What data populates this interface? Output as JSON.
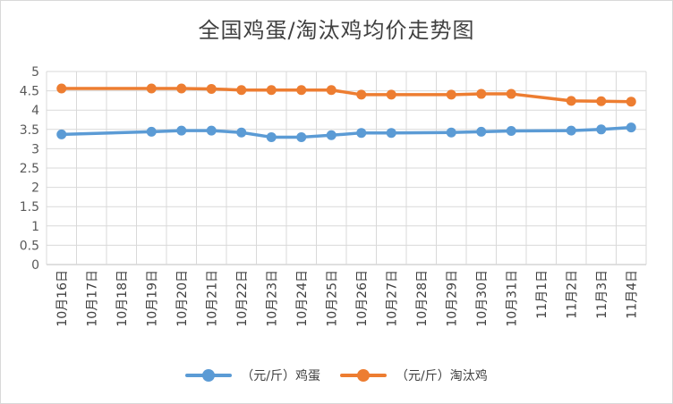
{
  "chart_data": {
    "type": "line",
    "title": "全国鸡蛋/淘汰鸡均价走势图",
    "categories": [
      "10月16日",
      "10月17日",
      "10月18日",
      "10月19日",
      "10月20日",
      "10月21日",
      "10月22日",
      "10月23日",
      "10月24日",
      "10月25日",
      "10月26日",
      "10月27日",
      "10月28日",
      "10月29日",
      "10月30日",
      "10月31日",
      "11月1日",
      "11月2日",
      "11月3日",
      "11月4日"
    ],
    "ylim": [
      0,
      5
    ],
    "yticks": [
      "0",
      "0.5",
      "1",
      "1.5",
      "2",
      "2.5",
      "3",
      "3.5",
      "4",
      "4.5",
      "5"
    ],
    "grid": true,
    "legend_position": "bottom",
    "series": [
      {
        "name": "（元/斤）鸡蛋",
        "color": "#5b9bd5",
        "values": [
          3.37,
          null,
          null,
          3.44,
          3.47,
          3.47,
          3.42,
          3.3,
          3.3,
          3.35,
          3.41,
          3.41,
          null,
          3.42,
          3.44,
          3.46,
          null,
          3.47,
          3.5,
          3.55
        ]
      },
      {
        "name": "（元/斤）淘汰鸡",
        "color": "#ed7d31",
        "values": [
          4.56,
          null,
          null,
          4.56,
          4.56,
          4.55,
          4.52,
          4.52,
          4.52,
          4.52,
          4.4,
          4.4,
          null,
          4.4,
          4.42,
          4.42,
          null,
          4.24,
          4.23,
          4.22
        ]
      }
    ]
  }
}
